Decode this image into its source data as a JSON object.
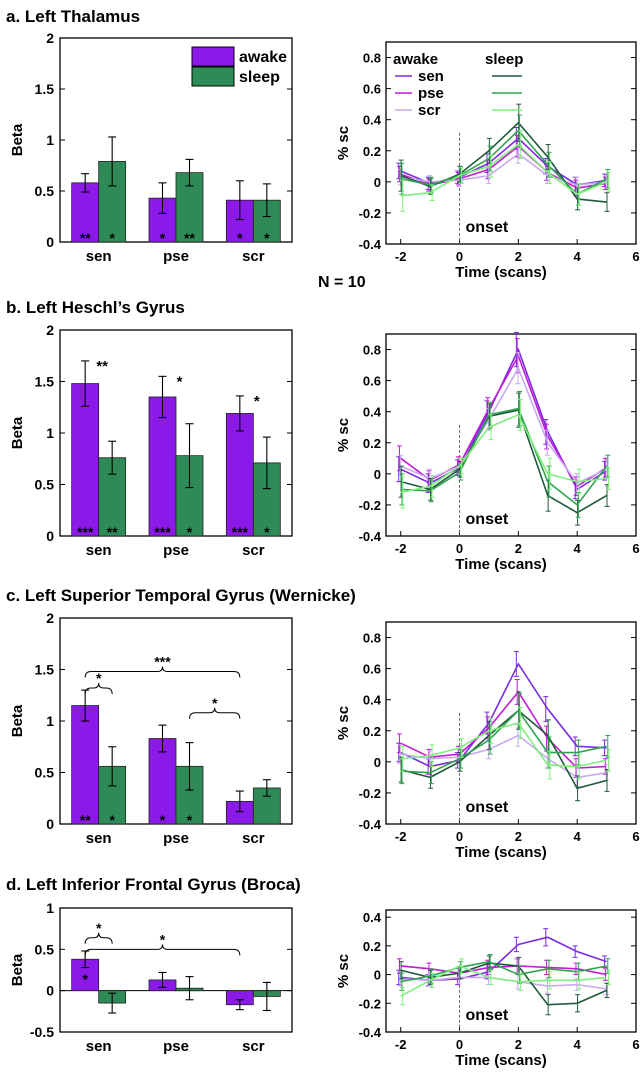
{
  "figure": {
    "n_label": "N = 10",
    "bar_categories": [
      "sen",
      "pse",
      "scr"
    ],
    "bar_ylabel": "Beta",
    "line_ylabel": "% sc",
    "line_xlabel": "Time (scans)",
    "line_onset_label": "onset",
    "bar_legend": [
      "awake",
      "sleep"
    ],
    "line_legend_headers": [
      "awake",
      "sleep"
    ],
    "line_legend_rows": [
      "sen",
      "pse",
      "scr"
    ]
  },
  "colors": {
    "awake_bar": "#8B1AE8",
    "sleep_bar": "#2E8B57",
    "awake_sen": "#7B2BE2",
    "awake_pse": "#C21CD6",
    "awake_scr": "#C8A8F0",
    "sleep_sen": "#1F5A3A",
    "sleep_pse": "#2FA34F",
    "sleep_scr": "#7EF07A"
  },
  "chart_data": [
    {
      "type": "bar",
      "panel_title": "a. Left Thalamus",
      "categories": [
        "sen",
        "pse",
        "scr"
      ],
      "series": [
        {
          "name": "awake",
          "values": [
            0.58,
            0.43,
            0.41
          ],
          "errors": [
            0.09,
            0.15,
            0.19
          ]
        },
        {
          "name": "sleep",
          "values": [
            0.79,
            0.68,
            0.41
          ],
          "errors": [
            0.24,
            0.13,
            0.16
          ]
        }
      ],
      "ylabel": "Beta",
      "ylim": [
        0,
        2
      ],
      "yticks": [
        0,
        0.5,
        1,
        1.5,
        2
      ],
      "bottom_stars": [
        [
          "**",
          "*"
        ],
        [
          "*",
          "**"
        ],
        [
          "*",
          "*"
        ]
      ],
      "top_stars": [],
      "brackets": [],
      "legend": "top-right"
    },
    {
      "type": "line",
      "panel_title": "a. Left Thalamus",
      "x": [
        -2,
        -1,
        0,
        1,
        2,
        3,
        4,
        5
      ],
      "series": [
        {
          "name": "awake sen",
          "values": [
            0.07,
            -0.01,
            0.03,
            0.12,
            0.28,
            0.1,
            -0.02,
            0.01
          ],
          "errors": [
            0.05,
            0.04,
            0.04,
            0.06,
            0.07,
            0.05,
            0.05,
            0.04
          ]
        },
        {
          "name": "awake pse",
          "values": [
            0.05,
            -0.02,
            0.02,
            0.08,
            0.23,
            0.06,
            -0.04,
            -0.01
          ],
          "errors": [
            0.05,
            0.04,
            0.04,
            0.06,
            0.07,
            0.05,
            0.05,
            0.04
          ]
        },
        {
          "name": "awake scr",
          "values": [
            0.03,
            0.0,
            0.01,
            0.04,
            0.18,
            0.04,
            -0.02,
            0.0
          ],
          "errors": [
            0.05,
            0.04,
            0.04,
            0.05,
            0.06,
            0.05,
            0.05,
            0.04
          ]
        },
        {
          "name": "sleep sen",
          "values": [
            0.04,
            -0.03,
            0.05,
            0.2,
            0.38,
            0.16,
            -0.11,
            -0.13
          ],
          "errors": [
            0.1,
            0.05,
            0.05,
            0.08,
            0.12,
            0.08,
            0.07,
            0.06
          ]
        },
        {
          "name": "sleep pse",
          "values": [
            0.02,
            -0.02,
            0.04,
            0.15,
            0.33,
            0.11,
            -0.08,
            0.02
          ],
          "errors": [
            0.1,
            0.05,
            0.05,
            0.08,
            0.1,
            0.08,
            0.07,
            0.06
          ]
        },
        {
          "name": "sleep scr",
          "values": [
            -0.09,
            -0.07,
            0.04,
            0.1,
            0.24,
            0.06,
            -0.08,
            0.0
          ],
          "errors": [
            0.1,
            0.05,
            0.05,
            0.07,
            0.09,
            0.07,
            0.07,
            0.06
          ]
        }
      ],
      "ylabel": "% sc",
      "xlabel": "Time (scans)",
      "xlim": [
        -2.5,
        6
      ],
      "ylim": [
        -0.4,
        0.9
      ],
      "xticks": [
        -2,
        0,
        2,
        4,
        6
      ],
      "yticks": [
        -0.4,
        -0.2,
        0,
        0.2,
        0.4,
        0.6,
        0.8
      ],
      "legend": "top-left"
    },
    {
      "type": "bar",
      "panel_title": "b. Left Heschl’s Gyrus",
      "categories": [
        "sen",
        "pse",
        "scr"
      ],
      "series": [
        {
          "name": "awake",
          "values": [
            1.48,
            1.35,
            1.19
          ],
          "errors": [
            0.22,
            0.2,
            0.17
          ]
        },
        {
          "name": "sleep",
          "values": [
            0.76,
            0.78,
            0.71
          ],
          "errors": [
            0.16,
            0.31,
            0.25
          ]
        }
      ],
      "ylabel": "Beta",
      "ylim": [
        0,
        2
      ],
      "yticks": [
        0,
        0.5,
        1,
        1.5,
        2
      ],
      "bottom_stars": [
        [
          "***",
          "**"
        ],
        [
          "***",
          "*"
        ],
        [
          "***",
          "*"
        ]
      ],
      "top_stars": [
        "**",
        "*",
        "*"
      ],
      "brackets": []
    },
    {
      "type": "line",
      "panel_title": "b. Left Heschl’s Gyrus",
      "x": [
        -2,
        -1,
        0,
        1,
        2,
        3,
        4,
        5
      ],
      "series": [
        {
          "name": "awake sen",
          "values": [
            0.03,
            -0.06,
            0.04,
            0.4,
            0.8,
            0.27,
            -0.1,
            0.02
          ],
          "errors": [
            0.08,
            0.06,
            0.05,
            0.07,
            0.11,
            0.08,
            0.06,
            0.06
          ]
        },
        {
          "name": "awake pse",
          "values": [
            0.1,
            -0.04,
            0.06,
            0.42,
            0.76,
            0.24,
            -0.08,
            0.04
          ],
          "errors": [
            0.08,
            0.06,
            0.05,
            0.07,
            0.11,
            0.08,
            0.06,
            0.06
          ]
        },
        {
          "name": "awake scr",
          "values": [
            0.05,
            -0.03,
            0.05,
            0.35,
            0.68,
            0.2,
            -0.06,
            0.03
          ],
          "errors": [
            0.07,
            0.06,
            0.05,
            0.07,
            0.1,
            0.08,
            0.06,
            0.06
          ]
        },
        {
          "name": "sleep sen",
          "values": [
            -0.05,
            -0.1,
            0.03,
            0.37,
            0.41,
            -0.14,
            -0.25,
            -0.14
          ],
          "errors": [
            0.1,
            0.07,
            0.05,
            0.08,
            0.11,
            0.1,
            0.08,
            0.07
          ]
        },
        {
          "name": "sleep pse",
          "values": [
            -0.1,
            -0.11,
            0.01,
            0.38,
            0.42,
            -0.05,
            -0.2,
            0.05
          ],
          "errors": [
            0.1,
            0.07,
            0.05,
            0.08,
            0.11,
            0.1,
            0.08,
            0.07
          ]
        },
        {
          "name": "sleep scr",
          "values": [
            -0.12,
            -0.08,
            0.05,
            0.3,
            0.38,
            0.0,
            -0.05,
            -0.03
          ],
          "errors": [
            0.1,
            0.07,
            0.05,
            0.08,
            0.1,
            0.1,
            0.08,
            0.07
          ]
        }
      ],
      "ylabel": "% sc",
      "xlabel": "Time (scans)",
      "xlim": [
        -2.5,
        6
      ],
      "ylim": [
        -0.4,
        0.9
      ],
      "xticks": [
        -2,
        0,
        2,
        4,
        6
      ],
      "yticks": [
        -0.4,
        -0.2,
        0,
        0.2,
        0.4,
        0.6,
        0.8
      ]
    },
    {
      "type": "bar",
      "panel_title": "c. Left Superior Temporal Gyrus (Wernicke)",
      "categories": [
        "sen",
        "pse",
        "scr"
      ],
      "series": [
        {
          "name": "awake",
          "values": [
            1.15,
            0.83,
            0.22
          ],
          "errors": [
            0.15,
            0.13,
            0.1
          ]
        },
        {
          "name": "sleep",
          "values": [
            0.56,
            0.56,
            0.35
          ],
          "errors": [
            0.19,
            0.23,
            0.08
          ]
        }
      ],
      "ylabel": "Beta",
      "ylim": [
        0,
        2
      ],
      "yticks": [
        0,
        0.5,
        1,
        1.5,
        2
      ],
      "bottom_stars": [
        [
          "**",
          "*"
        ],
        [
          "*",
          "*"
        ],
        [
          "",
          ""
        ]
      ],
      "top_stars": [],
      "brackets": [
        {
          "from": [
            0,
            0
          ],
          "to": [
            0,
            1
          ],
          "y": 1.32,
          "label": "*"
        },
        {
          "from": [
            0,
            0
          ],
          "to": [
            2,
            0
          ],
          "y": 1.48,
          "label": "***"
        },
        {
          "from": [
            1,
            1
          ],
          "to": [
            2,
            0
          ],
          "y": 1.08,
          "label": "*"
        }
      ]
    },
    {
      "type": "line",
      "panel_title": "c. Left Superior Temporal Gyrus (Wernicke)",
      "x": [
        -2,
        -1,
        0,
        1,
        2,
        3,
        4,
        5
      ],
      "series": [
        {
          "name": "awake sen",
          "values": [
            0.06,
            -0.03,
            0.01,
            0.25,
            0.63,
            0.34,
            0.1,
            0.09
          ],
          "errors": [
            0.06,
            0.05,
            0.05,
            0.07,
            0.08,
            0.08,
            0.06,
            0.05
          ]
        },
        {
          "name": "awake pse",
          "values": [
            0.12,
            0.03,
            0.05,
            0.22,
            0.45,
            0.15,
            -0.04,
            -0.03
          ],
          "errors": [
            0.06,
            0.05,
            0.05,
            0.07,
            0.08,
            0.08,
            0.06,
            0.05
          ]
        },
        {
          "name": "awake scr",
          "values": [
            0.05,
            0.02,
            0.03,
            0.08,
            0.17,
            0.02,
            -0.1,
            -0.07
          ],
          "errors": [
            0.06,
            0.05,
            0.05,
            0.06,
            0.07,
            0.06,
            0.06,
            0.05
          ]
        },
        {
          "name": "sleep sen",
          "values": [
            -0.05,
            -0.1,
            0.0,
            0.17,
            0.33,
            0.17,
            -0.17,
            -0.12
          ],
          "errors": [
            0.08,
            0.07,
            0.06,
            0.09,
            0.12,
            0.1,
            0.08,
            0.07
          ]
        },
        {
          "name": "sleep pse",
          "values": [
            -0.06,
            -0.07,
            0.02,
            0.14,
            0.33,
            0.06,
            0.06,
            0.1
          ],
          "errors": [
            0.08,
            0.07,
            0.06,
            0.09,
            0.11,
            0.1,
            0.08,
            0.07
          ]
        },
        {
          "name": "sleep scr",
          "values": [
            0.02,
            0.04,
            0.09,
            0.2,
            0.25,
            -0.02,
            -0.03,
            0.01
          ],
          "errors": [
            0.08,
            0.07,
            0.06,
            0.08,
            0.1,
            0.09,
            0.08,
            0.07
          ]
        }
      ],
      "ylabel": "% sc",
      "xlabel": "Time (scans)",
      "xlim": [
        -2.5,
        6
      ],
      "ylim": [
        -0.4,
        0.9
      ],
      "xticks": [
        -2,
        0,
        2,
        4,
        6
      ],
      "yticks": [
        -0.4,
        -0.2,
        0,
        0.2,
        0.4,
        0.6,
        0.8
      ]
    },
    {
      "type": "bar",
      "panel_title": "d. Left Inferior Frontal Gyrus (Broca)",
      "categories": [
        "sen",
        "pse",
        "scr"
      ],
      "series": [
        {
          "name": "awake",
          "values": [
            0.38,
            0.13,
            -0.17
          ],
          "errors": [
            0.1,
            0.09,
            0.06
          ]
        },
        {
          "name": "sleep",
          "values": [
            -0.15,
            0.03,
            -0.07
          ],
          "errors": [
            0.12,
            0.14,
            0.17
          ]
        }
      ],
      "ylabel": "Beta",
      "ylim": [
        -0.5,
        1
      ],
      "yticks": [
        -0.5,
        0,
        0.5,
        1
      ],
      "bottom_stars": [],
      "inside_stars": [
        [
          "*",
          ""
        ],
        [
          "",
          ""
        ],
        [
          "",
          ""
        ]
      ],
      "top_stars": [],
      "brackets": [
        {
          "from": [
            0,
            0
          ],
          "to": [
            0,
            1
          ],
          "y": 0.64,
          "label": "*"
        },
        {
          "from": [
            0,
            0
          ],
          "to": [
            2,
            0
          ],
          "y": 0.5,
          "label": "*"
        }
      ]
    },
    {
      "type": "line",
      "panel_title": "d. Left Inferior Frontal Gyrus (Broca)",
      "x": [
        -2,
        -1,
        0,
        1,
        2,
        3,
        4,
        5
      ],
      "series": [
        {
          "name": "awake sen",
          "values": [
            -0.02,
            -0.04,
            -0.03,
            0.02,
            0.21,
            0.26,
            0.16,
            0.09
          ],
          "errors": [
            0.05,
            0.04,
            0.04,
            0.05,
            0.05,
            0.06,
            0.04,
            0.04
          ]
        },
        {
          "name": "awake pse",
          "values": [
            0.06,
            0.04,
            0.01,
            0.05,
            0.06,
            0.05,
            0.04,
            0.0
          ],
          "errors": [
            0.05,
            0.04,
            0.04,
            0.05,
            0.05,
            0.05,
            0.04,
            0.04
          ]
        },
        {
          "name": "awake scr",
          "values": [
            -0.03,
            -0.04,
            -0.02,
            -0.02,
            -0.05,
            -0.08,
            -0.07,
            -0.1
          ],
          "errors": [
            0.05,
            0.04,
            0.04,
            0.05,
            0.05,
            0.05,
            0.04,
            0.04
          ]
        },
        {
          "name": "sleep sen",
          "values": [
            0.03,
            -0.02,
            0.01,
            0.08,
            0.06,
            -0.21,
            -0.2,
            -0.11
          ],
          "errors": [
            0.06,
            0.05,
            0.04,
            0.05,
            0.06,
            0.07,
            0.06,
            0.05
          ]
        },
        {
          "name": "sleep pse",
          "values": [
            -0.05,
            -0.01,
            0.05,
            0.09,
            0.0,
            0.04,
            0.02,
            0.06
          ],
          "errors": [
            0.06,
            0.05,
            0.04,
            0.05,
            0.06,
            0.06,
            0.06,
            0.05
          ]
        },
        {
          "name": "sleep scr",
          "values": [
            -0.15,
            -0.04,
            0.06,
            -0.02,
            -0.05,
            -0.04,
            -0.04,
            -0.02
          ],
          "errors": [
            0.06,
            0.05,
            0.05,
            0.05,
            0.06,
            0.06,
            0.06,
            0.05
          ]
        }
      ],
      "ylabel": "% sc",
      "xlabel": "Time (scans)",
      "xlim": [
        -2.5,
        6
      ],
      "ylim": [
        -0.4,
        0.45
      ],
      "xticks": [
        -2,
        0,
        2,
        4,
        6
      ],
      "yticks": [
        -0.4,
        -0.2,
        0,
        0.2,
        0.4
      ]
    }
  ]
}
